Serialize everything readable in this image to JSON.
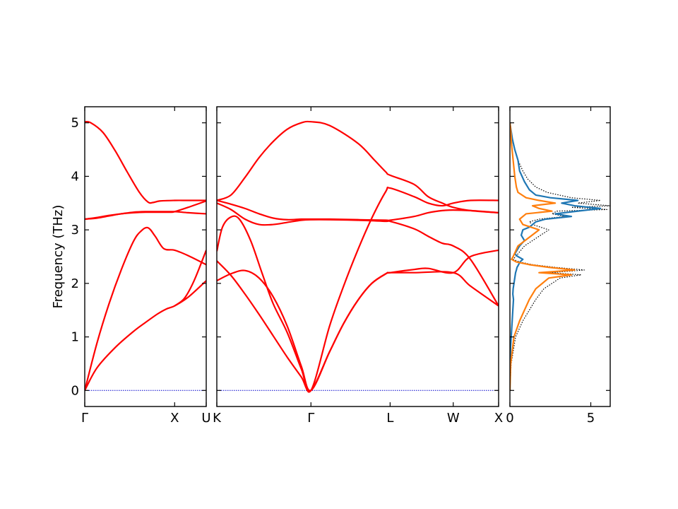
{
  "chart_data": [
    {
      "type": "line",
      "panel": "band-structure-left",
      "x_ticks": [
        "Γ",
        "X",
        "U"
      ],
      "ylabel": "Frequency (THz)",
      "ylim": [
        -0.3,
        5.3
      ],
      "y_ticks": [
        0,
        1,
        2,
        3,
        4,
        5
      ],
      "x_range": [
        0,
        1
      ],
      "x_tick_positions": [
        0,
        0.74,
        1
      ],
      "line_color": "#ff0000",
      "zero_line_color": "#0000cc",
      "series": [
        {
          "x": [
            0,
            0.1,
            0.25,
            0.4,
            0.5,
            0.6,
            0.67,
            0.74,
            0.85,
            1.0
          ],
          "y": [
            0,
            0.42,
            0.8,
            1.1,
            1.27,
            1.43,
            1.52,
            1.58,
            1.74,
            2.05
          ]
        },
        {
          "x": [
            0,
            0.1,
            0.2,
            0.3,
            0.4,
            0.46,
            0.52,
            0.58,
            0.65,
            0.74,
            0.85,
            1.0
          ],
          "y": [
            0,
            0.88,
            1.62,
            2.25,
            2.78,
            2.97,
            3.04,
            2.88,
            2.65,
            2.62,
            2.52,
            2.35
          ]
        },
        {
          "x": [
            0,
            0.1,
            0.2,
            0.3,
            0.4,
            0.5,
            0.6,
            0.74,
            0.85,
            1.0
          ],
          "y": [
            3.2,
            3.23,
            3.27,
            3.3,
            3.33,
            3.34,
            3.34,
            3.34,
            3.32,
            3.3
          ]
        },
        {
          "x": [
            0,
            0.1,
            0.2,
            0.3,
            0.4,
            0.5,
            0.6,
            0.7,
            0.74,
            0.85,
            1.0
          ],
          "y": [
            3.2,
            3.22,
            3.26,
            3.3,
            3.32,
            3.33,
            3.33,
            3.33,
            3.34,
            3.42,
            3.54
          ]
        },
        {
          "x": [
            0,
            0.05,
            0.15,
            0.25,
            0.35,
            0.45,
            0.52,
            0.56,
            0.62,
            0.74,
            0.85,
            1.0
          ],
          "y": [
            5.02,
            5.0,
            4.82,
            4.48,
            4.08,
            3.7,
            3.52,
            3.51,
            3.54,
            3.55,
            3.55,
            3.55
          ]
        },
        {
          "x": [
            0.74,
            0.82,
            0.9,
            1.0
          ],
          "y": [
            1.58,
            1.72,
            2.05,
            2.62
          ]
        }
      ]
    },
    {
      "type": "line",
      "panel": "band-structure-right",
      "x_ticks": [
        "K",
        "Γ",
        "L",
        "W",
        "X"
      ],
      "ylim": [
        -0.3,
        5.3
      ],
      "x_range": [
        0,
        1
      ],
      "x_tick_positions": [
        0,
        0.334,
        0.615,
        0.839,
        1
      ],
      "line_color": "#ff0000",
      "zero_line_color": "#0000cc",
      "series": [
        {
          "x": [
            0,
            0.05,
            0.1,
            0.15,
            0.2,
            0.25,
            0.3,
            0.334,
            0.4,
            0.45,
            0.5,
            0.55,
            0.6,
            0.615,
            0.7,
            0.839,
            0.9,
            1.0
          ],
          "y": [
            2.05,
            2.18,
            2.24,
            2.1,
            1.75,
            1.2,
            0.45,
            0,
            0.72,
            1.25,
            1.68,
            2.0,
            2.18,
            2.2,
            2.2,
            2.2,
            1.95,
            1.58
          ]
        },
        {
          "x": [
            0,
            0.05,
            0.1,
            0.15,
            0.2,
            0.25,
            0.3,
            0.334,
            0.4,
            0.45,
            0.5,
            0.55,
            0.6,
            0.615,
            0.7,
            0.75,
            0.839,
            0.9,
            1.0
          ],
          "y": [
            2.42,
            2.15,
            1.8,
            1.42,
            1.02,
            0.62,
            0.25,
            0,
            0.72,
            1.25,
            1.68,
            2.0,
            2.18,
            2.2,
            2.26,
            2.28,
            2.2,
            2.5,
            2.62
          ]
        },
        {
          "x": [
            0,
            0.02,
            0.05,
            0.08,
            0.12,
            0.16,
            0.2,
            0.25,
            0.3,
            0.334,
            0.4,
            0.45,
            0.5,
            0.55,
            0.6,
            0.615,
            0.7,
            0.75,
            0.8,
            0.839,
            0.9,
            1.0
          ],
          "y": [
            2.6,
            3.05,
            3.24,
            3.2,
            2.8,
            2.2,
            1.62,
            1.08,
            0.4,
            0,
            1.2,
            1.95,
            2.62,
            3.22,
            3.72,
            3.78,
            3.62,
            3.5,
            3.45,
            3.5,
            3.55,
            3.55
          ]
        },
        {
          "x": [
            0,
            0.05,
            0.1,
            0.15,
            0.2,
            0.25,
            0.3,
            0.334,
            0.4,
            0.5,
            0.6,
            0.615,
            0.7,
            0.75,
            0.8,
            0.839,
            0.9,
            1.0
          ],
          "y": [
            3.5,
            3.38,
            3.2,
            3.1,
            3.1,
            3.14,
            3.18,
            3.19,
            3.19,
            3.18,
            3.16,
            3.16,
            3.02,
            2.88,
            2.75,
            2.7,
            2.45,
            1.58
          ]
        },
        {
          "x": [
            0,
            0.05,
            0.1,
            0.15,
            0.2,
            0.25,
            0.3,
            0.334,
            0.4,
            0.5,
            0.6,
            0.615,
            0.7,
            0.75,
            0.8,
            0.839,
            0.9,
            1.0
          ],
          "y": [
            3.55,
            3.48,
            3.4,
            3.3,
            3.22,
            3.19,
            3.2,
            3.2,
            3.2,
            3.19,
            3.18,
            3.18,
            3.25,
            3.32,
            3.36,
            3.37,
            3.36,
            3.32
          ]
        },
        {
          "x": [
            0,
            0.05,
            0.1,
            0.15,
            0.2,
            0.25,
            0.3,
            0.334,
            0.4,
            0.5,
            0.56,
            0.6,
            0.615,
            0.7,
            0.75,
            0.8,
            0.839,
            0.9,
            1.0
          ],
          "y": [
            3.55,
            3.65,
            3.98,
            4.35,
            4.65,
            4.88,
            5.0,
            5.02,
            4.95,
            4.62,
            4.3,
            4.08,
            4.02,
            3.85,
            3.62,
            3.5,
            3.42,
            3.36,
            3.32
          ]
        }
      ]
    },
    {
      "type": "line",
      "panel": "density-of-states",
      "x_ticks": [
        "0",
        "5"
      ],
      "xlim": [
        0,
        6.2
      ],
      "ylim": [
        -0.3,
        5.3
      ],
      "series": [
        {
          "name": "",
          "color": "#1f77b4",
          "style": "solid",
          "dos": [
            0,
            0,
            0.04,
            0.08,
            0.12,
            0.16,
            0.2,
            0.22,
            0.18,
            0.2,
            0.25,
            0.3,
            0.35,
            0.4,
            0.44,
            0.5,
            0.55,
            0.62,
            0.8,
            0.5,
            0.3,
            0.4,
            0.6,
            0.9,
            0.7,
            0.8,
            1.2,
            1.4,
            1.6,
            2.2,
            3.8,
            2.8,
            4.2,
            5.6,
            4.0,
            3.2,
            4.2,
            2.5,
            1.6,
            1.2,
            0.9,
            0.6,
            0.5,
            0.3,
            0.15,
            0.05,
            0
          ],
          "freq": [
            0,
            0.4,
            0.8,
            1.0,
            1.2,
            1.4,
            1.6,
            1.7,
            1.8,
            1.9,
            2.0,
            2.1,
            2.2,
            2.25,
            2.3,
            2.33,
            2.36,
            2.4,
            2.45,
            2.5,
            2.55,
            2.6,
            2.7,
            2.8,
            2.9,
            3.0,
            3.05,
            3.1,
            3.15,
            3.2,
            3.25,
            3.3,
            3.35,
            3.4,
            3.45,
            3.5,
            3.55,
            3.6,
            3.65,
            3.75,
            3.9,
            4.1,
            4.3,
            4.5,
            4.7,
            4.9,
            5.0
          ]
        },
        {
          "name": "",
          "color": "#ff7f0e",
          "style": "solid",
          "dos": [
            0,
            0.05,
            0.25,
            0.6,
            0.9,
            1.2,
            1.6,
            2.0,
            2.4,
            3.8,
            1.8,
            4.0,
            2.4,
            1.2,
            0.4,
            0.1,
            0.2,
            0.5,
            1.8,
            0.8,
            0.6,
            1.0,
            2.6,
            1.8,
            1.4,
            2.8,
            1.8,
            1.0,
            0.5,
            0.4,
            0.3,
            0.2,
            0.1,
            0.04,
            0
          ],
          "freq": [
            0,
            0.5,
            1.0,
            1.3,
            1.5,
            1.7,
            1.9,
            2.0,
            2.1,
            2.16,
            2.2,
            2.25,
            2.3,
            2.35,
            2.4,
            2.45,
            2.5,
            2.7,
            3.0,
            3.1,
            3.2,
            3.3,
            3.35,
            3.4,
            3.45,
            3.5,
            3.55,
            3.6,
            3.7,
            3.8,
            4.0,
            4.3,
            4.6,
            4.9,
            5.0
          ]
        },
        {
          "name": "",
          "color": "#000000",
          "style": "dotted",
          "dos": [
            0,
            0.08,
            0.35,
            0.8,
            1.2,
            1.6,
            2.1,
            2.6,
            3.1,
            4.4,
            2.5,
            4.6,
            2.8,
            1.4,
            0.6,
            0.2,
            0.35,
            0.9,
            2.4,
            1.4,
            1.2,
            1.8,
            3.4,
            2.6,
            2.9,
            6.0,
            3.8,
            6.2,
            4.2,
            5.6,
            3.8,
            2.3,
            1.6,
            1.1,
            0.8,
            0.5,
            0.2,
            0.05,
            0
          ],
          "freq": [
            0,
            0.5,
            1.0,
            1.3,
            1.5,
            1.7,
            1.9,
            2.0,
            2.1,
            2.16,
            2.2,
            2.25,
            2.3,
            2.35,
            2.4,
            2.45,
            2.5,
            2.7,
            3.0,
            3.1,
            3.15,
            3.2,
            3.25,
            3.3,
            3.35,
            3.38,
            3.42,
            3.45,
            3.5,
            3.55,
            3.6,
            3.7,
            3.8,
            3.95,
            4.1,
            4.3,
            4.6,
            4.9,
            5.0
          ]
        }
      ]
    }
  ]
}
